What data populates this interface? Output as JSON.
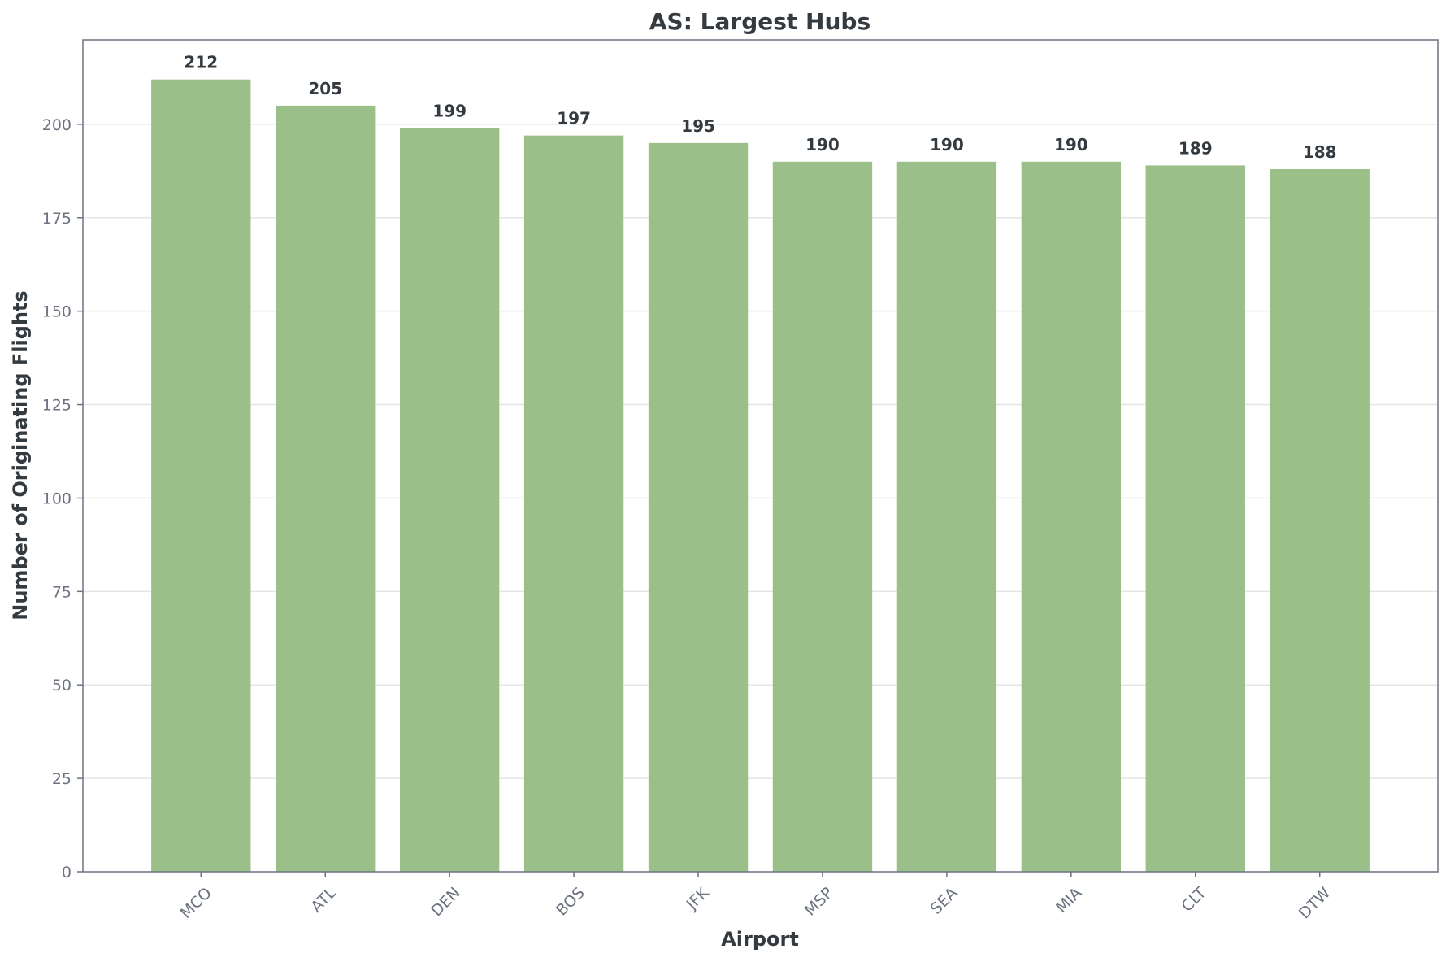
{
  "chart_data": {
    "type": "bar",
    "title": "AS: Largest Hubs",
    "xlabel": "Airport",
    "ylabel": "Number of Originating Flights",
    "categories": [
      "MCO",
      "ATL",
      "DEN",
      "BOS",
      "JFK",
      "MSP",
      "SEA",
      "MIA",
      "CLT",
      "DTW"
    ],
    "values": [
      212,
      205,
      199,
      197,
      195,
      190,
      190,
      190,
      189,
      188
    ],
    "data_labels": [
      "212",
      "205",
      "199",
      "197",
      "195",
      "190",
      "190",
      "190",
      "189",
      "188"
    ],
    "ylim": [
      0,
      222.6
    ],
    "yticks": [
      0,
      25,
      50,
      75,
      100,
      125,
      150,
      175,
      200
    ],
    "ytick_labels": [
      "0",
      "25",
      "50",
      "75",
      "100",
      "125",
      "150",
      "175",
      "200"
    ],
    "grid": "horizontal",
    "legend": "none",
    "bar_color": "#9abf88",
    "text_color": "#333a40",
    "tick_color": "#6b7280"
  }
}
